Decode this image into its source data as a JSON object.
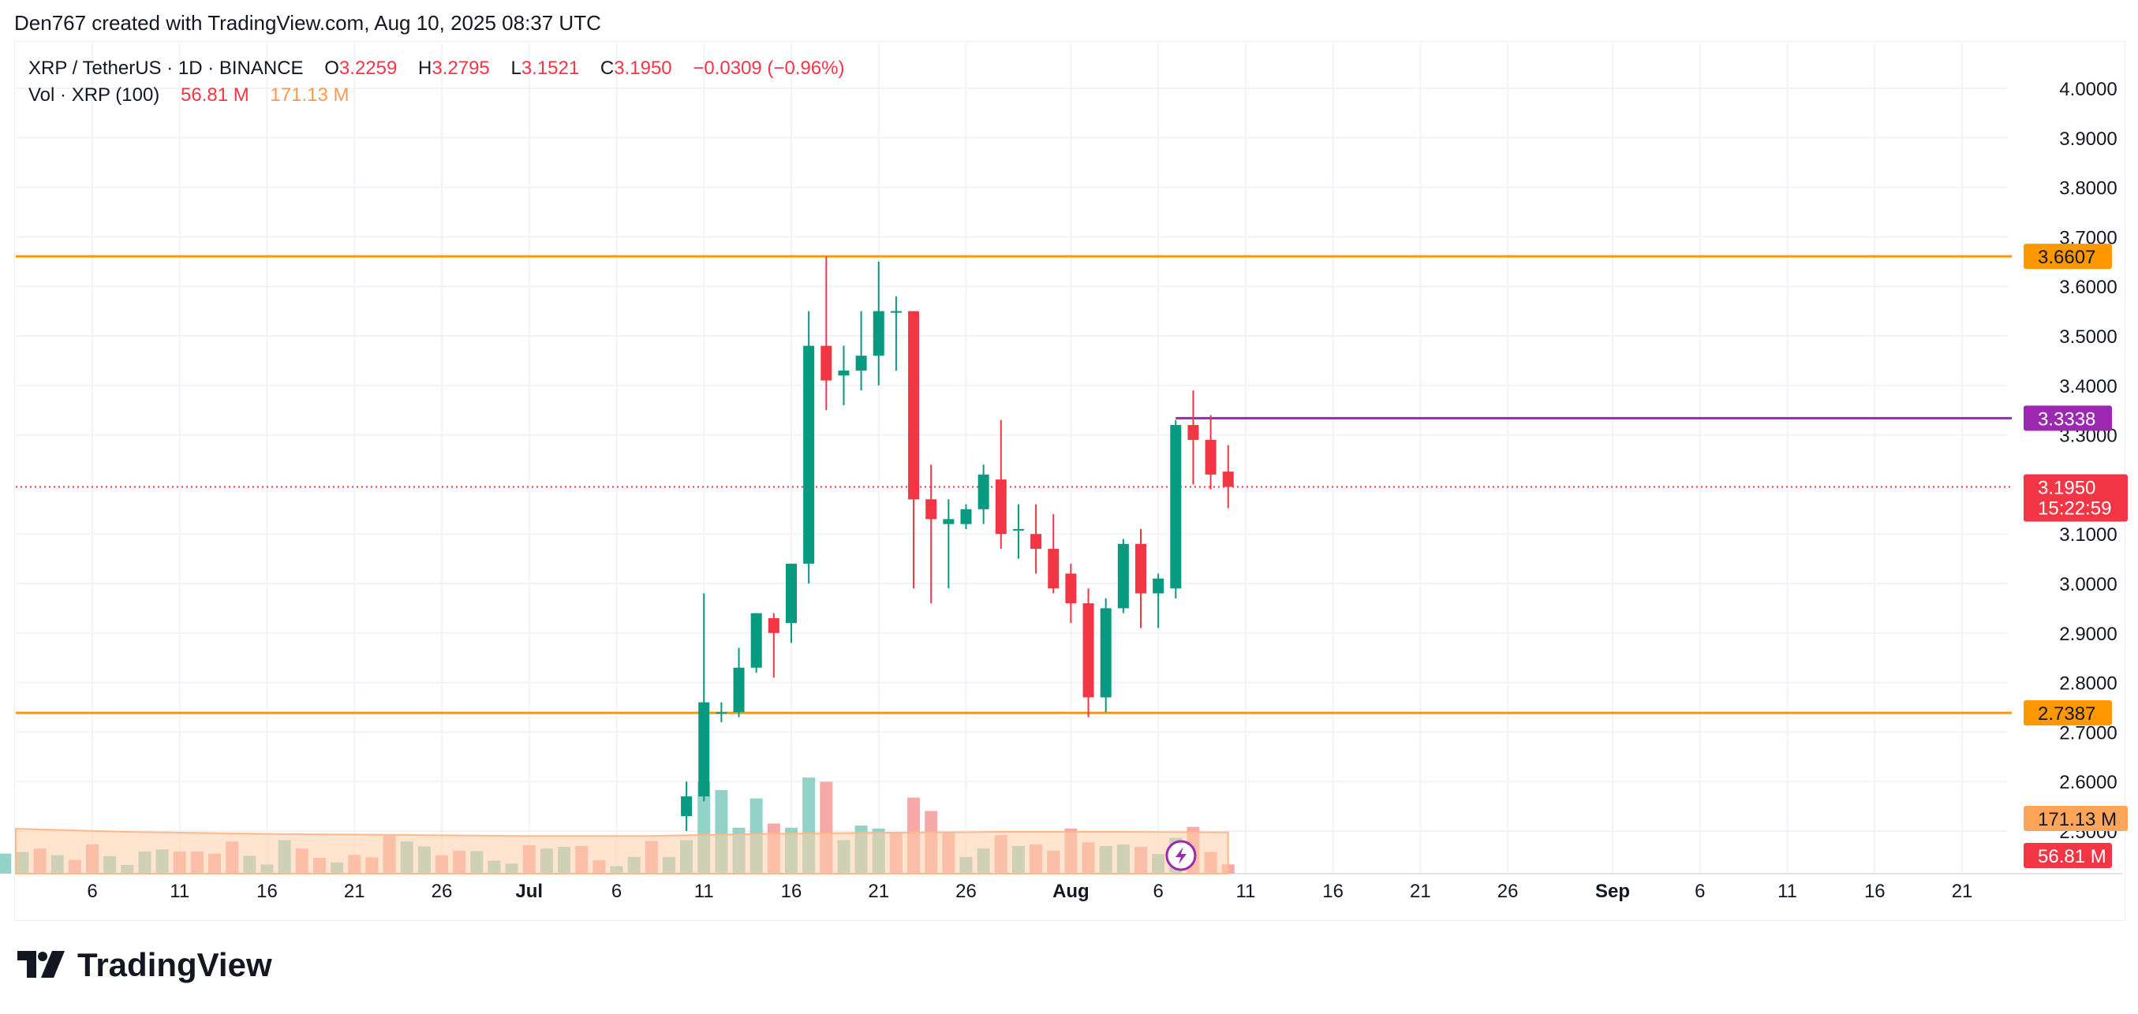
{
  "header": {
    "caption": "Den767 created with TradingView.com, Aug 10, 2025 08:37 UTC"
  },
  "legend": {
    "symbol": "XRP / TetherUS · 1D · BINANCE",
    "o_label": "O",
    "o_value": "3.2259",
    "h_label": "H",
    "h_value": "3.2795",
    "l_label": "L",
    "l_value": "3.1521",
    "c_label": "C",
    "c_value": "3.1950",
    "change": "−0.0309 (−0.96%)",
    "vol_label": "Vol · XRP (100)",
    "vol_value": "56.81 M",
    "vol_ma_value": "171.13 M"
  },
  "footer": {
    "brand": "TradingView"
  },
  "colors": {
    "up": "#089981",
    "down": "#f23645",
    "vol_up": "#92d2c8",
    "vol_down": "#f7a9a7",
    "vol_ma_fill": "#ffcfa8",
    "vol_ma_line": "#ffb889",
    "support_resistance": "#ff9800",
    "level_purple": "#9c27b0",
    "grid": "#f0f3fa",
    "axis_text": "#131722"
  },
  "chart_data": {
    "type": "candlestick",
    "y_axis": {
      "ylim": [
        2.53,
        4.04
      ],
      "ticks": [
        "4.0000",
        "3.9000",
        "3.8000",
        "3.7000",
        "3.6000",
        "3.5000",
        "3.4000",
        "3.3000",
        "3.1000",
        "3.0000",
        "2.9000",
        "2.8000",
        "2.7000",
        "2.6000",
        "2.5000"
      ]
    },
    "x_axis": {
      "ticks": [
        {
          "date": "2025-06-06",
          "label": "6"
        },
        {
          "date": "2025-06-11",
          "label": "11"
        },
        {
          "date": "2025-06-16",
          "label": "16"
        },
        {
          "date": "2025-06-21",
          "label": "21"
        },
        {
          "date": "2025-06-26",
          "label": "26"
        },
        {
          "date": "2025-07-01",
          "label": "Jul"
        },
        {
          "date": "2025-07-06",
          "label": "6"
        },
        {
          "date": "2025-07-11",
          "label": "11"
        },
        {
          "date": "2025-07-16",
          "label": "16"
        },
        {
          "date": "2025-07-21",
          "label": "21"
        },
        {
          "date": "2025-07-26",
          "label": "26"
        },
        {
          "date": "2025-08-01",
          "label": "Aug"
        },
        {
          "date": "2025-08-06",
          "label": "6"
        },
        {
          "date": "2025-08-11",
          "label": "11"
        },
        {
          "date": "2025-08-16",
          "label": "16"
        },
        {
          "date": "2025-08-21",
          "label": "21"
        },
        {
          "date": "2025-08-26",
          "label": "26"
        },
        {
          "date": "2025-09-01",
          "label": "Sep"
        },
        {
          "date": "2025-09-06",
          "label": "6"
        },
        {
          "date": "2025-09-11",
          "label": "11"
        },
        {
          "date": "2025-09-16",
          "label": "16"
        },
        {
          "date": "2025-09-21",
          "label": "21"
        }
      ]
    },
    "candles": [
      {
        "date": "2025-07-10",
        "o": 2.53,
        "h": 2.6,
        "l": 2.5,
        "c": 2.57
      },
      {
        "date": "2025-07-11",
        "o": 2.57,
        "h": 2.98,
        "l": 2.56,
        "c": 2.76
      },
      {
        "date": "2025-07-12",
        "o": 2.74,
        "h": 2.76,
        "l": 2.72,
        "c": 2.74
      },
      {
        "date": "2025-07-13",
        "o": 2.74,
        "h": 2.87,
        "l": 2.73,
        "c": 2.83
      },
      {
        "date": "2025-07-14",
        "o": 2.83,
        "h": 2.94,
        "l": 2.82,
        "c": 2.94
      },
      {
        "date": "2025-07-15",
        "o": 2.93,
        "h": 2.94,
        "l": 2.81,
        "c": 2.9
      },
      {
        "date": "2025-07-16",
        "o": 2.92,
        "h": 3.04,
        "l": 2.88,
        "c": 3.04
      },
      {
        "date": "2025-07-17",
        "o": 3.04,
        "h": 3.55,
        "l": 3.0,
        "c": 3.48
      },
      {
        "date": "2025-07-18",
        "o": 3.48,
        "h": 3.66,
        "l": 3.35,
        "c": 3.41
      },
      {
        "date": "2025-07-19",
        "o": 3.42,
        "h": 3.48,
        "l": 3.36,
        "c": 3.43
      },
      {
        "date": "2025-07-20",
        "o": 3.43,
        "h": 3.55,
        "l": 3.39,
        "c": 3.46
      },
      {
        "date": "2025-07-21",
        "o": 3.46,
        "h": 3.65,
        "l": 3.4,
        "c": 3.55
      },
      {
        "date": "2025-07-22",
        "o": 3.55,
        "h": 3.58,
        "l": 3.43,
        "c": 3.55
      },
      {
        "date": "2025-07-23",
        "o": 3.55,
        "h": 3.55,
        "l": 2.99,
        "c": 3.17
      },
      {
        "date": "2025-07-24",
        "o": 3.17,
        "h": 3.24,
        "l": 2.96,
        "c": 3.13
      },
      {
        "date": "2025-07-25",
        "o": 3.12,
        "h": 3.17,
        "l": 2.99,
        "c": 3.13
      },
      {
        "date": "2025-07-26",
        "o": 3.12,
        "h": 3.16,
        "l": 3.11,
        "c": 3.15
      },
      {
        "date": "2025-07-27",
        "o": 3.15,
        "h": 3.24,
        "l": 3.12,
        "c": 3.22
      },
      {
        "date": "2025-07-28",
        "o": 3.21,
        "h": 3.33,
        "l": 3.07,
        "c": 3.1
      },
      {
        "date": "2025-07-29",
        "o": 3.11,
        "h": 3.16,
        "l": 3.05,
        "c": 3.11
      },
      {
        "date": "2025-07-30",
        "o": 3.1,
        "h": 3.16,
        "l": 3.02,
        "c": 3.07
      },
      {
        "date": "2025-07-31",
        "o": 3.07,
        "h": 3.14,
        "l": 2.98,
        "c": 2.99
      },
      {
        "date": "2025-08-01",
        "o": 3.02,
        "h": 3.04,
        "l": 2.92,
        "c": 2.96
      },
      {
        "date": "2025-08-02",
        "o": 2.96,
        "h": 2.99,
        "l": 2.73,
        "c": 2.77
      },
      {
        "date": "2025-08-03",
        "o": 2.77,
        "h": 2.97,
        "l": 2.74,
        "c": 2.95
      },
      {
        "date": "2025-08-04",
        "o": 2.95,
        "h": 3.09,
        "l": 2.94,
        "c": 3.08
      },
      {
        "date": "2025-08-05",
        "o": 3.08,
        "h": 3.11,
        "l": 2.91,
        "c": 2.98
      },
      {
        "date": "2025-08-06",
        "o": 2.98,
        "h": 3.02,
        "l": 2.91,
        "c": 3.01
      },
      {
        "date": "2025-08-07",
        "o": 2.99,
        "h": 3.33,
        "l": 2.97,
        "c": 3.32
      },
      {
        "date": "2025-08-08",
        "o": 3.32,
        "h": 3.39,
        "l": 3.2,
        "c": 3.29
      },
      {
        "date": "2025-08-09",
        "o": 3.29,
        "h": 3.34,
        "l": 3.19,
        "c": 3.22
      },
      {
        "date": "2025-08-10",
        "o": 3.2259,
        "h": 3.2795,
        "l": 3.1521,
        "c": 3.195
      }
    ],
    "volume": {
      "scale_ref": "171.13 M",
      "bars": [
        {
          "date": "2025-06-01",
          "v": 48,
          "up": true
        },
        {
          "date": "2025-06-02",
          "v": 52,
          "up": true
        },
        {
          "date": "2025-06-03",
          "v": 60,
          "up": false
        },
        {
          "date": "2025-06-04",
          "v": 44,
          "up": true
        },
        {
          "date": "2025-06-05",
          "v": 33,
          "up": false
        },
        {
          "date": "2025-06-06",
          "v": 70,
          "up": false
        },
        {
          "date": "2025-06-07",
          "v": 42,
          "up": true
        },
        {
          "date": "2025-06-08",
          "v": 21,
          "up": true
        },
        {
          "date": "2025-06-09",
          "v": 53,
          "up": true
        },
        {
          "date": "2025-06-10",
          "v": 58,
          "up": true
        },
        {
          "date": "2025-06-11",
          "v": 53,
          "up": false
        },
        {
          "date": "2025-06-12",
          "v": 53,
          "up": false
        },
        {
          "date": "2025-06-13",
          "v": 48,
          "up": false
        },
        {
          "date": "2025-06-14",
          "v": 77,
          "up": false
        },
        {
          "date": "2025-06-15",
          "v": 43,
          "up": true
        },
        {
          "date": "2025-06-16",
          "v": 22,
          "up": true
        },
        {
          "date": "2025-06-17",
          "v": 80,
          "up": true
        },
        {
          "date": "2025-06-18",
          "v": 60,
          "up": false
        },
        {
          "date": "2025-06-19",
          "v": 38,
          "up": false
        },
        {
          "date": "2025-06-20",
          "v": 27,
          "up": true
        },
        {
          "date": "2025-06-21",
          "v": 45,
          "up": false
        },
        {
          "date": "2025-06-22",
          "v": 39,
          "up": false
        },
        {
          "date": "2025-06-23",
          "v": 91,
          "up": false
        },
        {
          "date": "2025-06-24",
          "v": 77,
          "up": true
        },
        {
          "date": "2025-06-25",
          "v": 65,
          "up": true
        },
        {
          "date": "2025-06-26",
          "v": 44,
          "up": false
        },
        {
          "date": "2025-06-27",
          "v": 55,
          "up": false
        },
        {
          "date": "2025-06-28",
          "v": 54,
          "up": true
        },
        {
          "date": "2025-06-29",
          "v": 31,
          "up": true
        },
        {
          "date": "2025-06-30",
          "v": 24,
          "up": true
        },
        {
          "date": "2025-07-01",
          "v": 68,
          "up": false
        },
        {
          "date": "2025-07-02",
          "v": 60,
          "up": true
        },
        {
          "date": "2025-07-03",
          "v": 64,
          "up": true
        },
        {
          "date": "2025-07-04",
          "v": 66,
          "up": false
        },
        {
          "date": "2025-07-05",
          "v": 32,
          "up": false
        },
        {
          "date": "2025-07-06",
          "v": 18,
          "up": true
        },
        {
          "date": "2025-07-07",
          "v": 40,
          "up": true
        },
        {
          "date": "2025-07-08",
          "v": 78,
          "up": false
        },
        {
          "date": "2025-07-09",
          "v": 40,
          "up": true
        },
        {
          "date": "2025-07-10",
          "v": 80,
          "up": true
        },
        {
          "date": "2025-07-11",
          "v": 220,
          "up": true
        },
        {
          "date": "2025-07-12",
          "v": 200,
          "up": true
        },
        {
          "date": "2025-07-13",
          "v": 110,
          "up": true
        },
        {
          "date": "2025-07-14",
          "v": 180,
          "up": true
        },
        {
          "date": "2025-07-15",
          "v": 120,
          "up": false
        },
        {
          "date": "2025-07-16",
          "v": 110,
          "up": true
        },
        {
          "date": "2025-07-17",
          "v": 230,
          "up": true
        },
        {
          "date": "2025-07-18",
          "v": 220,
          "up": false
        },
        {
          "date": "2025-07-19",
          "v": 80,
          "up": true
        },
        {
          "date": "2025-07-20",
          "v": 115,
          "up": true
        },
        {
          "date": "2025-07-21",
          "v": 108,
          "up": true
        },
        {
          "date": "2025-07-22",
          "v": 98,
          "up": false
        },
        {
          "date": "2025-07-23",
          "v": 182,
          "up": false
        },
        {
          "date": "2025-07-24",
          "v": 150,
          "up": false
        },
        {
          "date": "2025-07-25",
          "v": 98,
          "up": false
        },
        {
          "date": "2025-07-26",
          "v": 40,
          "up": true
        },
        {
          "date": "2025-07-27",
          "v": 60,
          "up": true
        },
        {
          "date": "2025-07-28",
          "v": 92,
          "up": false
        },
        {
          "date": "2025-07-29",
          "v": 66,
          "up": true
        },
        {
          "date": "2025-07-30",
          "v": 70,
          "up": false
        },
        {
          "date": "2025-07-31",
          "v": 55,
          "up": false
        },
        {
          "date": "2025-08-01",
          "v": 108,
          "up": false
        },
        {
          "date": "2025-08-02",
          "v": 75,
          "up": false
        },
        {
          "date": "2025-08-03",
          "v": 66,
          "up": true
        },
        {
          "date": "2025-08-04",
          "v": 70,
          "up": true
        },
        {
          "date": "2025-08-05",
          "v": 64,
          "up": false
        },
        {
          "date": "2025-08-06",
          "v": 47,
          "up": true
        },
        {
          "date": "2025-08-07",
          "v": 86,
          "up": true
        },
        {
          "date": "2025-08-08",
          "v": 112,
          "up": false
        },
        {
          "date": "2025-08-09",
          "v": 52,
          "up": false
        },
        {
          "date": "2025-08-10",
          "v": 22,
          "up": false
        }
      ],
      "ma_series": [
        {
          "date": "2025-06-01",
          "v": 86
        },
        {
          "date": "2025-06-08",
          "v": 80
        },
        {
          "date": "2025-06-16",
          "v": 76
        },
        {
          "date": "2025-06-24",
          "v": 74
        },
        {
          "date": "2025-07-01",
          "v": 72
        },
        {
          "date": "2025-07-08",
          "v": 72
        },
        {
          "date": "2025-07-14",
          "v": 76
        },
        {
          "date": "2025-07-20",
          "v": 78
        },
        {
          "date": "2025-07-28",
          "v": 80
        },
        {
          "date": "2025-08-04",
          "v": 80
        },
        {
          "date": "2025-08-10",
          "v": 79
        }
      ]
    },
    "levels": [
      {
        "name": "resistance",
        "value": 3.6607,
        "label": "3.6607",
        "color": "#ff9800",
        "from": "start"
      },
      {
        "name": "support",
        "value": 2.7387,
        "label": "2.7387",
        "color": "#ff9800",
        "from": "start"
      },
      {
        "name": "level-purple",
        "value": 3.3338,
        "label": "3.3338",
        "color": "#9c27b0",
        "from": "2025-08-07"
      }
    ],
    "last_price": {
      "value": 3.195,
      "label": "3.1950",
      "countdown": "15:22:59"
    },
    "axis_tags": {
      "vol_ma": "171.13 M",
      "vol": "56.81 M"
    }
  }
}
